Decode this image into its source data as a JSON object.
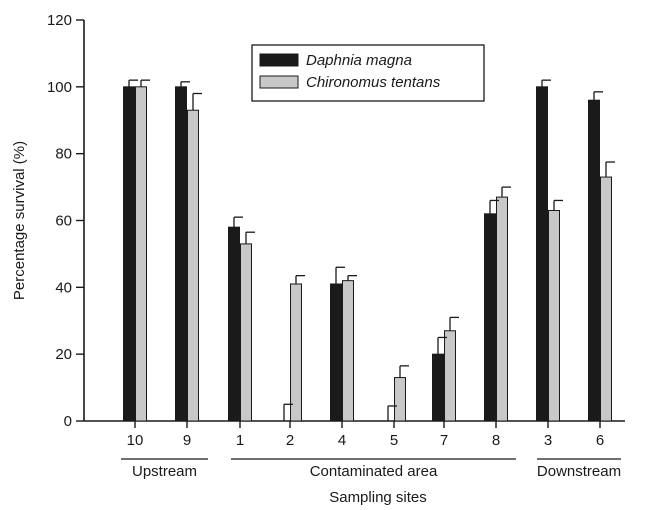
{
  "chart_data": {
    "type": "bar",
    "title": "",
    "xlabel": "Sampling sites",
    "ylabel": "Percentage survival (%)",
    "ylim": [
      0,
      120
    ],
    "yticks": [
      0,
      20,
      40,
      60,
      80,
      100,
      120
    ],
    "categories": [
      "10",
      "9",
      "1",
      "2",
      "4",
      "5",
      "7",
      "8",
      "3",
      "6"
    ],
    "series": [
      {
        "name": "Daphnia magna",
        "color": "#1a1a1a",
        "values": [
          100,
          100,
          58,
          0,
          41,
          0,
          20,
          62,
          100,
          96
        ],
        "errors": [
          2,
          1.5,
          3,
          5,
          5,
          4.5,
          5,
          4,
          2,
          2.5
        ]
      },
      {
        "name": "Chironomus tentans",
        "color": "#c8c8c8",
        "values": [
          100,
          93,
          53,
          41,
          42,
          13,
          27,
          67,
          63,
          73
        ],
        "errors": [
          2,
          5,
          3.5,
          2.5,
          1.5,
          3.5,
          4,
          3,
          3,
          4.5
        ]
      }
    ],
    "groups": [
      {
        "label": "Upstream",
        "first": "10",
        "last": "9"
      },
      {
        "label": "Contaminated area",
        "first": "1",
        "last": "8"
      },
      {
        "label": "Downstream",
        "first": "3",
        "last": "6"
      }
    ],
    "legend_position": "top-center",
    "grid": false
  }
}
